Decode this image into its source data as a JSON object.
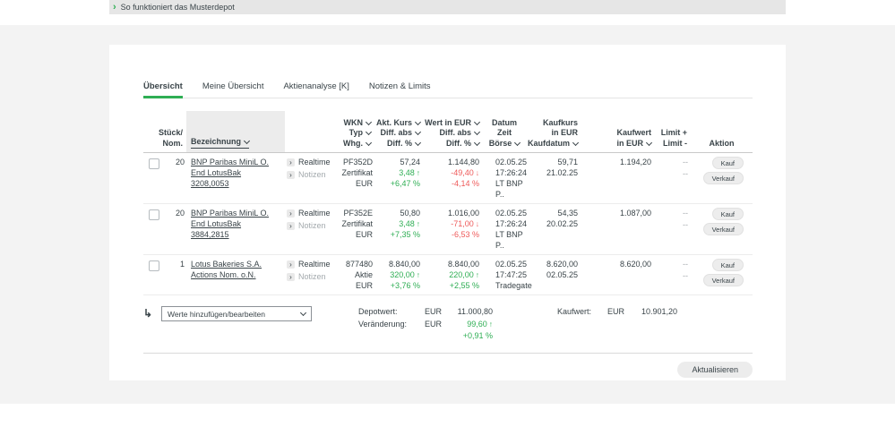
{
  "colors": {
    "green": "#2fae54",
    "red": "#ee5a5a",
    "dark": "#3a4449",
    "muted": "#a3a9ad"
  },
  "icons": {
    "arrow_up": "↑",
    "arrow_down": "↓",
    "chevron_right": "›",
    "return_arrow": "↳"
  },
  "topbar": {
    "link": "So funktioniert das Musterdepot"
  },
  "tabs": [
    {
      "label": "Übersicht"
    },
    {
      "label": "Meine Übersicht"
    },
    {
      "label": "Aktienanalyse [K]"
    },
    {
      "label": "Notizen & Limits"
    }
  ],
  "table": {
    "headers": {
      "stueck": [
        "Stück/",
        "Nom."
      ],
      "bezeichnung": "Bezeichnung",
      "wkn": [
        "WKN",
        "Typ",
        "Whg."
      ],
      "akt_kurs": [
        "Akt. Kurs",
        "Diff. abs",
        "Diff. %"
      ],
      "wert": [
        "Wert in EUR",
        "Diff. abs",
        "Diff. %"
      ],
      "datum": [
        "Datum",
        "Zeit",
        "Börse"
      ],
      "kaufkurs": [
        "Kaufkurs",
        "in EUR",
        "Kaufdatum"
      ],
      "kaufwert": [
        "Kaufwert",
        "in EUR"
      ],
      "limit": [
        "Limit +",
        "Limit -"
      ],
      "aktion": "Aktion"
    },
    "links": {
      "realtime": "Realtime",
      "notizen": "Notizen"
    },
    "actions": {
      "kauf": "Kauf",
      "verkauf": "Verkauf"
    },
    "rows": [
      {
        "qty": "20",
        "name": [
          "BNP Paribas MiniL O.",
          "End LotusBak",
          "3208,0053"
        ],
        "wkn": "PF352D",
        "typ": "Zertifikat",
        "whg": "EUR",
        "kurs": "57,24",
        "kurs_diff": "3,48",
        "kurs_pct": "+6,47 %",
        "wert": "1.144,80",
        "wert_diff": "-49,40",
        "wert_pct": "-4,14 %",
        "datum": "02.05.25",
        "zeit": "17:26:24",
        "boerse": "LT BNP P..",
        "kaufkurs": "59,71",
        "kaufdatum": "21.02.25",
        "kaufwert": "1.194,20",
        "limit_plus": "--",
        "limit_minus": "--"
      },
      {
        "qty": "20",
        "name": [
          "BNP Paribas MiniL O.",
          "End LotusBak",
          "3884,2815"
        ],
        "wkn": "PF352E",
        "typ": "Zertifikat",
        "whg": "EUR",
        "kurs": "50,80",
        "kurs_diff": "3,48",
        "kurs_pct": "+7,35 %",
        "wert": "1.016,00",
        "wert_diff": "-71,00",
        "wert_pct": "-6,53 %",
        "datum": "02.05.25",
        "zeit": "17:26:24",
        "boerse": "LT BNP P..",
        "kaufkurs": "54,35",
        "kaufdatum": "20.02.25",
        "kaufwert": "1.087,00",
        "limit_plus": "--",
        "limit_minus": "--"
      },
      {
        "qty": "1",
        "name": [
          "Lotus Bakeries S.A.",
          "Actions Nom. o.N."
        ],
        "wkn": "877480",
        "typ": "Aktie",
        "whg": "EUR",
        "kurs": "8.840,00",
        "kurs_diff": "320,00",
        "kurs_pct": "+3,76 %",
        "wert": "8.840,00",
        "wert_diff": "220,00",
        "wert_pct": "+2,55 %",
        "datum": "02.05.25",
        "zeit": "17:47:25",
        "boerse": "Tradegate",
        "kaufkurs": "8.620,00",
        "kaufdatum": "02.05.25",
        "kaufwert": "8.620,00",
        "limit_plus": "--",
        "limit_minus": "--"
      }
    ]
  },
  "footer": {
    "select_value": "Werte hinzufügen/bearbeiten",
    "depotwert_label": "Depotwert:",
    "depotwert_currency": "EUR",
    "depotwert_value": "11.000,80",
    "veraenderung_label": "Veränderung:",
    "veraenderung_currency": "EUR",
    "veraenderung_value": "99,60",
    "veraenderung_pct": "+0,91 %",
    "kaufwert_label": "Kaufwert:",
    "kaufwert_currency": "EUR",
    "kaufwert_value": "10.901,20",
    "aktualisieren_label": "Aktualisieren"
  }
}
